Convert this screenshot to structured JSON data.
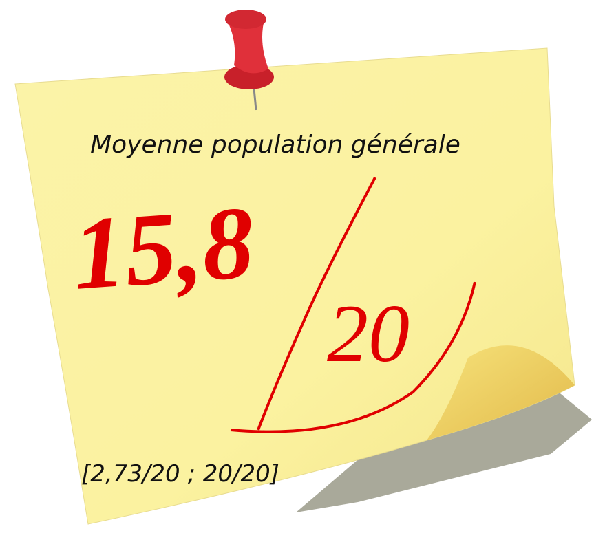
{
  "note": {
    "title": "Moyenne population générale",
    "score": "15,8",
    "denominator": "20",
    "range": "[2,73/20 ; 20/20]"
  }
}
